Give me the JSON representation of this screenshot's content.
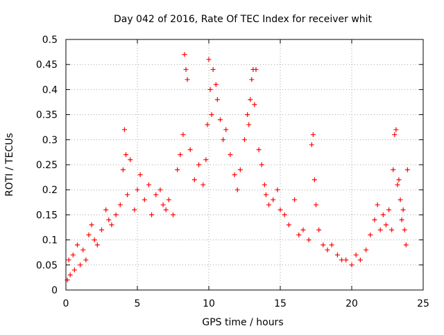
{
  "chart_data": {
    "type": "scatter",
    "title": "Day 042 of 2016, Rate Of TEC Index for receiver whit",
    "xlabel": "GPS time / hours",
    "ylabel": "ROTI / TECUs",
    "xlim": [
      0,
      25
    ],
    "ylim": [
      0,
      0.5
    ],
    "x_ticks": [
      "0",
      "5",
      "10",
      "15",
      "20",
      "25"
    ],
    "y_ticks": [
      "0",
      "0.05",
      "0.1",
      "0.15",
      "0.2",
      "0.25",
      "0.3",
      "0.35",
      "0.4",
      "0.45",
      "0.5"
    ],
    "grid": true,
    "legend": "none",
    "marker": "+",
    "point_color": "#ff0000",
    "series": [
      {
        "x": [
          0.1,
          0.2,
          0.3,
          0.5,
          0.6,
          0.8,
          1.0,
          1.2,
          1.4,
          1.6,
          1.8,
          2.0,
          2.2,
          2.5,
          2.8,
          3.0,
          3.2,
          3.5,
          3.8,
          4.0,
          4.1,
          4.2,
          4.3,
          4.5,
          4.8,
          5.0,
          5.2,
          5.5,
          5.8,
          6.0,
          6.3,
          6.6,
          6.8,
          7.0,
          7.2,
          7.5,
          7.8,
          8.0,
          8.2,
          8.3,
          8.4,
          8.5,
          8.7,
          9.0,
          9.3,
          9.6,
          9.8,
          9.9,
          10.0,
          10.1,
          10.2,
          10.3,
          10.5,
          10.6,
          10.8,
          11.0,
          11.2,
          11.5,
          11.8,
          12.0,
          12.2,
          12.5,
          12.7,
          12.8,
          12.9,
          13.0,
          13.1,
          13.2,
          13.3,
          13.5,
          13.7,
          13.9,
          14.0,
          14.2,
          14.5,
          14.8,
          15.0,
          15.3,
          15.6,
          16.0,
          16.3,
          16.6,
          17.0,
          17.2,
          17.3,
          17.4,
          17.5,
          17.7,
          18.0,
          18.3,
          18.6,
          19.0,
          19.3,
          19.6,
          20.0,
          20.3,
          20.6,
          21.0,
          21.3,
          21.6,
          21.8,
          22.0,
          22.2,
          22.4,
          22.6,
          22.8,
          22.9,
          23.0,
          23.1,
          23.2,
          23.3,
          23.4,
          23.5,
          23.6,
          23.7,
          23.8,
          23.9
        ],
        "y": [
          0.02,
          0.06,
          0.03,
          0.07,
          0.04,
          0.09,
          0.05,
          0.08,
          0.06,
          0.11,
          0.13,
          0.1,
          0.09,
          0.12,
          0.16,
          0.14,
          0.13,
          0.15,
          0.17,
          0.24,
          0.32,
          0.27,
          0.19,
          0.26,
          0.16,
          0.2,
          0.23,
          0.18,
          0.21,
          0.15,
          0.19,
          0.2,
          0.17,
          0.16,
          0.18,
          0.15,
          0.24,
          0.27,
          0.31,
          0.47,
          0.44,
          0.42,
          0.28,
          0.22,
          0.25,
          0.21,
          0.26,
          0.33,
          0.46,
          0.4,
          0.35,
          0.44,
          0.41,
          0.38,
          0.34,
          0.3,
          0.32,
          0.27,
          0.23,
          0.2,
          0.24,
          0.3,
          0.35,
          0.33,
          0.38,
          0.42,
          0.44,
          0.37,
          0.44,
          0.28,
          0.25,
          0.21,
          0.19,
          0.17,
          0.18,
          0.2,
          0.16,
          0.15,
          0.13,
          0.18,
          0.11,
          0.12,
          0.1,
          0.29,
          0.31,
          0.22,
          0.17,
          0.12,
          0.09,
          0.08,
          0.09,
          0.07,
          0.06,
          0.06,
          0.05,
          0.07,
          0.06,
          0.08,
          0.11,
          0.14,
          0.17,
          0.12,
          0.15,
          0.13,
          0.16,
          0.12,
          0.24,
          0.31,
          0.32,
          0.21,
          0.22,
          0.18,
          0.14,
          0.16,
          0.12,
          0.09,
          0.24
        ],
        "name": ""
      }
    ]
  }
}
